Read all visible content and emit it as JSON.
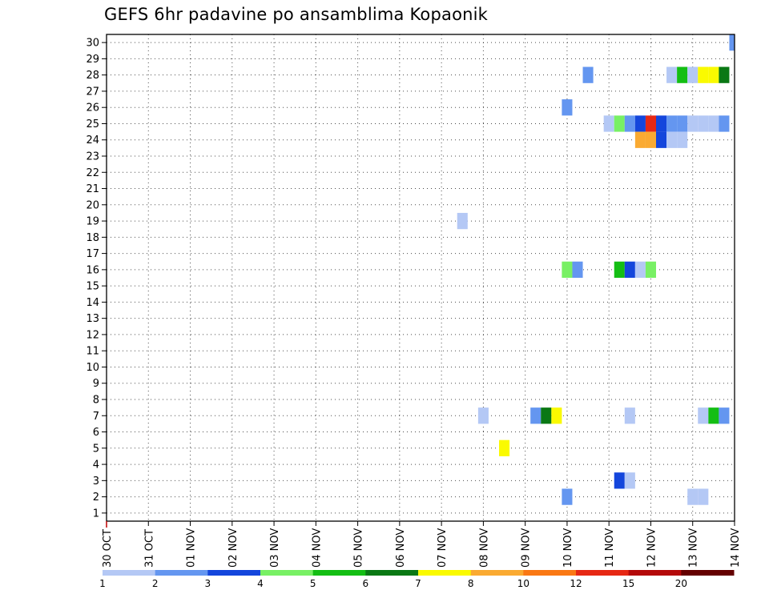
{
  "title": "GEFS 6hr padavine po ansamblima Kopaonik",
  "chart_data": {
    "type": "heatmap",
    "title": "GEFS 6hr padavine po ansamblima Kopaonik",
    "x_tick_labels": [
      "30 OCT",
      "31 OCT",
      "01 NOV",
      "02 NOV",
      "03 NOV",
      "04 NOV",
      "05 NOV",
      "06 NOV",
      "07 NOV",
      "08 NOV",
      "09 NOV",
      "10 NOV",
      "11 NOV",
      "12 NOV",
      "13 NOV",
      "14 NOV"
    ],
    "y_tick_labels": [
      "1",
      "2",
      "3",
      "4",
      "5",
      "6",
      "7",
      "8",
      "9",
      "10",
      "11",
      "12",
      "13",
      "14",
      "15",
      "16",
      "17",
      "18",
      "19",
      "20",
      "21",
      "22",
      "23",
      "24",
      "25",
      "26",
      "27",
      "28",
      "29",
      "30"
    ],
    "xlim_days": [
      0,
      15
    ],
    "ylim": [
      0.5,
      30.5
    ],
    "time_step_hours": 6,
    "grid": true,
    "colorbar": {
      "levels": [
        "1",
        "2",
        "3",
        "4",
        "5",
        "6",
        "7",
        "8",
        "10",
        "12",
        "15",
        "20"
      ],
      "colors": [
        "#b4c8f5",
        "#6496f0",
        "#1446dc",
        "#78f064",
        "#14be14",
        "#0a7814",
        "#fafa00",
        "#faaa32",
        "#fa7814",
        "#e62814",
        "#b40a0a",
        "#640000"
      ]
    },
    "cells": [
      {
        "x": 15.0,
        "y": 30,
        "v": 2
      },
      {
        "x": 11.5,
        "y": 28,
        "v": 2
      },
      {
        "x": 13.5,
        "y": 28,
        "v": 1
      },
      {
        "x": 13.75,
        "y": 28,
        "v": 5
      },
      {
        "x": 14.0,
        "y": 28,
        "v": 1
      },
      {
        "x": 14.25,
        "y": 28,
        "v": 7
      },
      {
        "x": 14.5,
        "y": 28,
        "v": 7
      },
      {
        "x": 14.75,
        "y": 28,
        "v": 6
      },
      {
        "x": 11.0,
        "y": 26,
        "v": 2
      },
      {
        "x": 12.0,
        "y": 25,
        "v": 1
      },
      {
        "x": 12.25,
        "y": 25,
        "v": 4
      },
      {
        "x": 12.5,
        "y": 25,
        "v": 2
      },
      {
        "x": 12.75,
        "y": 25,
        "v": 3
      },
      {
        "x": 13.0,
        "y": 25,
        "v": 12
      },
      {
        "x": 13.25,
        "y": 25,
        "v": 3
      },
      {
        "x": 13.5,
        "y": 25,
        "v": 2
      },
      {
        "x": 13.75,
        "y": 25,
        "v": 2
      },
      {
        "x": 14.0,
        "y": 25,
        "v": 1
      },
      {
        "x": 14.25,
        "y": 25,
        "v": 1
      },
      {
        "x": 14.5,
        "y": 25,
        "v": 1
      },
      {
        "x": 14.75,
        "y": 25,
        "v": 2
      },
      {
        "x": 12.75,
        "y": 24,
        "v": 8
      },
      {
        "x": 13.0,
        "y": 24,
        "v": 8
      },
      {
        "x": 13.25,
        "y": 24,
        "v": 3
      },
      {
        "x": 13.5,
        "y": 24,
        "v": 1
      },
      {
        "x": 13.75,
        "y": 24,
        "v": 1
      },
      {
        "x": 8.5,
        "y": 19,
        "v": 1
      },
      {
        "x": 11.0,
        "y": 16,
        "v": 4
      },
      {
        "x": 11.25,
        "y": 16,
        "v": 2
      },
      {
        "x": 12.25,
        "y": 16,
        "v": 5
      },
      {
        "x": 12.5,
        "y": 16,
        "v": 3
      },
      {
        "x": 12.75,
        "y": 16,
        "v": 1
      },
      {
        "x": 13.0,
        "y": 16,
        "v": 4
      },
      {
        "x": 9.0,
        "y": 7,
        "v": 1
      },
      {
        "x": 10.25,
        "y": 7,
        "v": 2
      },
      {
        "x": 10.5,
        "y": 7,
        "v": 6
      },
      {
        "x": 10.75,
        "y": 7,
        "v": 7
      },
      {
        "x": 12.5,
        "y": 7,
        "v": 1
      },
      {
        "x": 14.25,
        "y": 7,
        "v": 1
      },
      {
        "x": 14.5,
        "y": 7,
        "v": 5
      },
      {
        "x": 14.75,
        "y": 7,
        "v": 2
      },
      {
        "x": 9.5,
        "y": 5,
        "v": 7
      },
      {
        "x": 12.25,
        "y": 3,
        "v": 3
      },
      {
        "x": 12.5,
        "y": 3,
        "v": 1
      },
      {
        "x": 11.0,
        "y": 2,
        "v": 2
      },
      {
        "x": 14.0,
        "y": 2,
        "v": 1
      },
      {
        "x": 14.25,
        "y": 2,
        "v": 1
      }
    ]
  }
}
